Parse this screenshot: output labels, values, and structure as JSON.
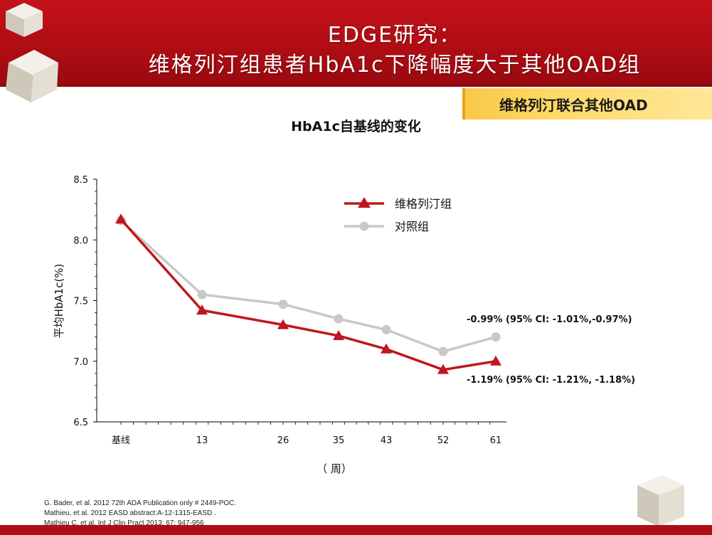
{
  "header": {
    "title_line1": "EDGE研究：",
    "title_line2": "维格列汀组患者HbA1c下降幅度大于其他OAD组"
  },
  "subtitle": "维格列汀联合其他OAD",
  "colors": {
    "header_red": "#b00d14",
    "series1": "#c0161e",
    "series2": "#c8c8c8",
    "highlight": "#ffd966"
  },
  "chart_data": {
    "type": "line",
    "title": "HbA1c自基线的变化",
    "xlabel": "（ 周）",
    "ylabel": "平均HbA1c(%)",
    "x_tick_labels": [
      "基线",
      "13",
      "26",
      "35",
      "43",
      "52",
      "61"
    ],
    "x": [
      0,
      13,
      26,
      35,
      43,
      52,
      61
    ],
    "ylim": [
      6.5,
      8.5
    ],
    "y_ticks": [
      "6.5",
      "7.0",
      "7.5",
      "8.0",
      "8.5"
    ],
    "legend_position": "top-right",
    "series": [
      {
        "name": "维格列汀组",
        "marker": "triangle",
        "color": "#c0161e",
        "values": [
          8.17,
          7.42,
          7.3,
          7.21,
          7.1,
          6.93,
          7.0
        ]
      },
      {
        "name": "对照组",
        "marker": "circle",
        "color": "#c8c8c8",
        "values": [
          8.16,
          7.55,
          7.47,
          7.35,
          7.26,
          7.08,
          7.2
        ]
      }
    ],
    "annotations": [
      {
        "text": "-0.99% (95% CI: -1.01%,-0.97%)"
      },
      {
        "text": "-1.19% (95% CI:  -1.21%, -1.18%)"
      }
    ]
  },
  "references": [
    "G. Bader,  et al. 2012 72th ADA Publication only # 2449-POC.",
    "Mathieu,  et al. 2012 EASD abstract:A-12-1315-EASD .",
    "Mathieu C, et al. Int J Clin Pract 2013; 67: 947-956"
  ]
}
